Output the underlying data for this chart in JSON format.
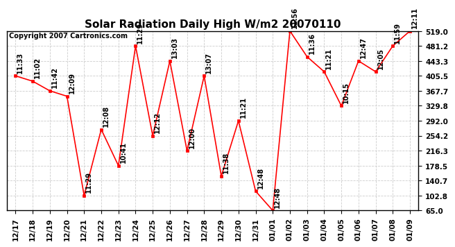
{
  "title": "Solar Radiation Daily High W/m2 20070110",
  "copyright": "Copyright 2007 Cartronics.com",
  "x_labels": [
    "12/17",
    "12/18",
    "12/19",
    "12/20",
    "12/21",
    "12/22",
    "12/23",
    "12/24",
    "12/25",
    "12/26",
    "12/27",
    "12/28",
    "12/29",
    "12/30",
    "12/31",
    "01/01",
    "01/02",
    "01/03",
    "01/04",
    "01/05",
    "01/06",
    "01/07",
    "01/08",
    "01/09"
  ],
  "y_values": [
    405.5,
    392.0,
    367.7,
    354.0,
    102.8,
    270.0,
    178.5,
    481.2,
    254.2,
    443.3,
    216.3,
    405.5,
    152.0,
    292.0,
    114.0,
    65.0,
    519.0,
    454.0,
    416.0,
    329.8,
    443.3,
    416.0,
    481.2,
    519.0
  ],
  "time_labels": [
    "11:33",
    "11:02",
    "11:42",
    "12:09",
    "11:29",
    "12:08",
    "10:41",
    "11:29",
    "12:12",
    "13:03",
    "12:00",
    "13:07",
    "11:38",
    "11:21",
    "12:48",
    "12:48",
    "11:56",
    "11:36",
    "11:21",
    "10:15",
    "12:47",
    "12:05",
    "11:59",
    "12:11"
  ],
  "y_ticks": [
    65.0,
    102.8,
    140.7,
    178.5,
    216.3,
    254.2,
    292.0,
    329.8,
    367.7,
    405.5,
    443.3,
    481.2,
    519.0
  ],
  "line_color": "#FF0000",
  "marker_color": "#FF0000",
  "bg_color": "#FFFFFF",
  "grid_color": "#CCCCCC",
  "title_fontsize": 11,
  "copyright_fontsize": 7,
  "label_fontsize": 7,
  "tick_fontsize": 7.5
}
